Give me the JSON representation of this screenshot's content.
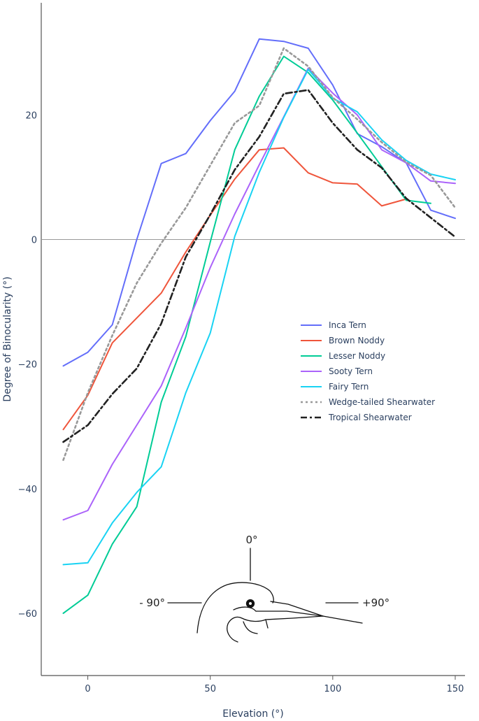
{
  "chart_data": {
    "type": "line",
    "title": "",
    "xlabel": "Elevation (°)",
    "ylabel": "Degree of Binocularity (°)",
    "xlim": [
      -19,
      154
    ],
    "ylim": [
      -70,
      38
    ],
    "xticks": [
      0,
      50,
      100,
      150
    ],
    "yticks": [
      -60,
      -40,
      -20,
      0,
      20
    ],
    "zero_line": true,
    "legend_position": "center-right",
    "series": [
      {
        "name": "Inca Tern",
        "color": "#636efa",
        "dash": "solid",
        "x": [
          -10,
          0,
          10,
          20,
          30,
          40,
          50,
          60,
          70,
          80,
          90,
          100,
          110,
          120,
          130,
          140,
          150
        ],
        "y": [
          -20.3,
          -18.1,
          -13.7,
          0.0,
          12.2,
          13.8,
          19.1,
          23.8,
          32.2,
          31.8,
          30.7,
          24.8,
          17.0,
          14.9,
          12.3,
          4.7,
          3.4
        ]
      },
      {
        "name": "Brown Noddy",
        "color": "#ef553b",
        "dash": "solid",
        "x": [
          -10,
          0,
          10,
          20,
          30,
          40,
          50,
          60,
          70,
          80,
          90,
          100,
          110,
          120,
          130
        ],
        "y": [
          -30.5,
          -25.0,
          -16.6,
          -12.6,
          -8.6,
          -2.0,
          3.9,
          9.7,
          14.4,
          14.7,
          10.7,
          9.1,
          8.9,
          5.4,
          6.5
        ]
      },
      {
        "name": "Lesser Noddy",
        "color": "#00cc96",
        "dash": "solid",
        "x": [
          -10,
          0,
          10,
          20,
          30,
          40,
          50,
          60,
          70,
          80,
          90,
          100,
          110,
          120,
          130,
          140
        ],
        "y": [
          -60.0,
          -57.1,
          -48.9,
          -42.9,
          -26.1,
          -15.6,
          -0.4,
          14.4,
          23.0,
          29.4,
          26.8,
          22.4,
          17.1,
          11.7,
          6.3,
          5.8
        ]
      },
      {
        "name": "Sooty Tern",
        "color": "#ab63fa",
        "dash": "solid",
        "x": [
          -10,
          0,
          10,
          20,
          30,
          40,
          50,
          60,
          70,
          80,
          90,
          100,
          110,
          120,
          130,
          140,
          150
        ],
        "y": [
          -45.0,
          -43.5,
          -36.1,
          -29.8,
          -23.5,
          -14.2,
          -4.5,
          4.1,
          12.0,
          19.7,
          27.5,
          23.5,
          20.0,
          14.4,
          12.3,
          9.4,
          9.0
        ]
      },
      {
        "name": "Fairy Tern",
        "color": "#19d3f3",
        "dash": "solid",
        "x": [
          -10,
          0,
          10,
          20,
          30,
          40,
          50,
          60,
          70,
          80,
          90,
          100,
          110,
          120,
          130,
          140,
          150
        ],
        "y": [
          -52.2,
          -51.9,
          -45.5,
          -40.6,
          -36.5,
          -24.6,
          -15.0,
          0.5,
          10.8,
          19.6,
          27.3,
          22.7,
          20.5,
          16.0,
          12.7,
          10.5,
          9.6
        ]
      },
      {
        "name": "Wedge-tailed Shearwater",
        "color": "#999999",
        "dash": "dot",
        "x": [
          -10,
          0,
          10,
          20,
          30,
          40,
          50,
          60,
          70,
          80,
          90,
          100,
          110,
          120,
          130,
          140,
          150
        ],
        "y": [
          -35.4,
          -24.6,
          -15.4,
          -7.0,
          -0.6,
          5.1,
          11.9,
          18.7,
          21.5,
          30.7,
          27.8,
          22.8,
          19.3,
          15.6,
          12.4,
          10.3,
          5.1
        ]
      },
      {
        "name": "Tropical Shearwater",
        "color": "#222222",
        "dash": "dashdot",
        "x": [
          -10,
          0,
          10,
          20,
          30,
          40,
          50,
          60,
          70,
          80,
          90,
          100,
          110,
          120,
          130,
          140,
          150
        ],
        "y": [
          -32.5,
          -29.8,
          -24.8,
          -20.7,
          -13.5,
          -2.8,
          4.0,
          11.2,
          16.5,
          23.4,
          24.0,
          18.7,
          14.4,
          11.5,
          6.6,
          3.5,
          0.4
        ]
      }
    ],
    "annotations": {
      "top": "0°",
      "left": "- 90°",
      "right": "+90°",
      "illustration": "bird head diagram"
    }
  }
}
